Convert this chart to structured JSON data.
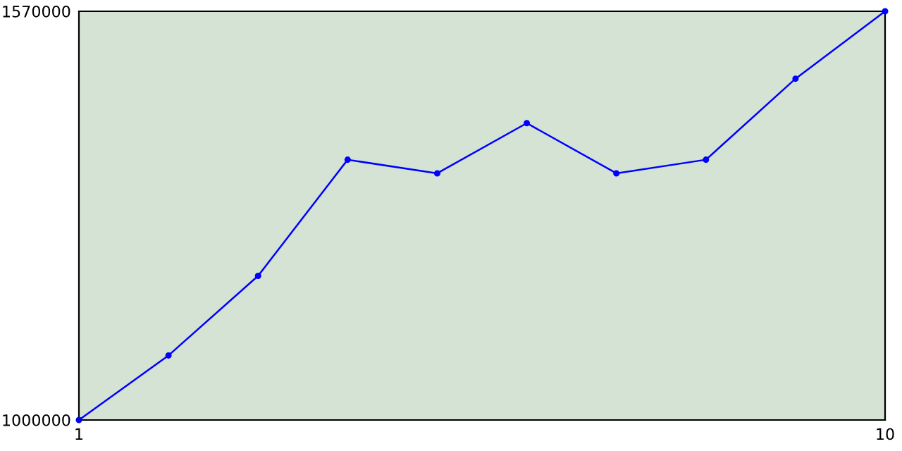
{
  "chart_data": {
    "type": "line",
    "x": [
      1,
      2,
      3,
      4,
      5,
      6,
      7,
      8,
      9,
      10
    ],
    "series": [
      {
        "color": "#0000ff",
        "values": [
          1000000,
          1090000,
          1201000,
          1363000,
          1344000,
          1414000,
          1344000,
          1363000,
          1476000,
          1570000
        ]
      }
    ],
    "xlim": [
      1,
      10
    ],
    "xticks": [
      1,
      10
    ],
    "ylim": [
      1000000,
      1570000
    ],
    "yticks": [
      1000000,
      1570000
    ],
    "marker": "circle",
    "line_style": "solid"
  }
}
